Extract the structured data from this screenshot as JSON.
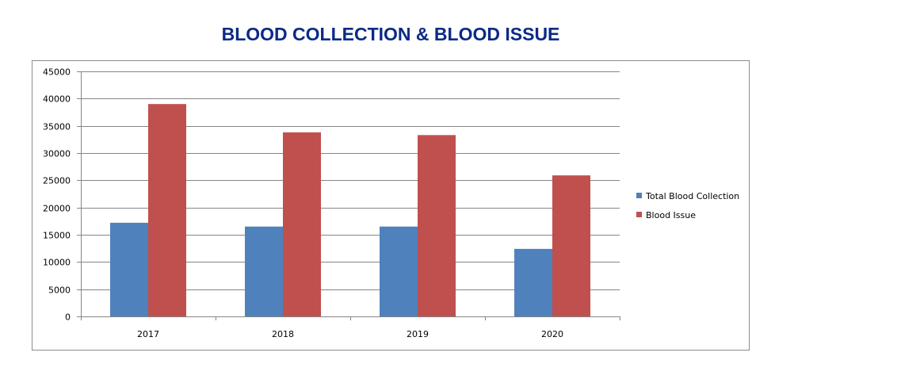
{
  "chart_data": {
    "type": "bar",
    "title": "BLOOD COLLECTION & BLOOD ISSUE",
    "xlabel": "",
    "ylabel": "",
    "categories": [
      "2017",
      "2018",
      "2019",
      "2020"
    ],
    "series": [
      {
        "name": "Total Blood Collection",
        "color": "#4f81bd",
        "values": [
          17200,
          16500,
          16500,
          12400
        ]
      },
      {
        "name": "Blood Issue",
        "color": "#c0504d",
        "values": [
          39000,
          33800,
          33300,
          25900
        ]
      }
    ],
    "ylim": [
      0,
      45000
    ],
    "yticks": [
      0,
      5000,
      10000,
      15000,
      20000,
      25000,
      30000,
      35000,
      40000,
      45000
    ],
    "grid": true,
    "legend_position": "right"
  }
}
